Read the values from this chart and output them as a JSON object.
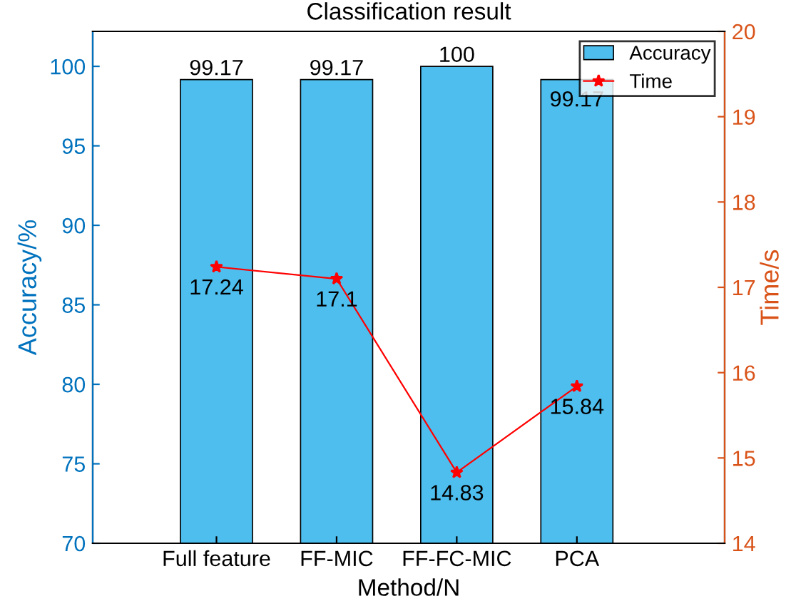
{
  "chart_data": {
    "type": "bar",
    "title": "Classification result",
    "xlabel": "Method/N",
    "ylabel": "Accuracy/%",
    "y2label": "Time/s",
    "categories": [
      "Full feature",
      "FF-MIC",
      "FF-FC-MIC",
      "PCA"
    ],
    "series": [
      {
        "name": "Accuracy",
        "color": "#4dbeee",
        "values": [
          99.17,
          99.17,
          100,
          99.17
        ]
      },
      {
        "name": "Time",
        "type": "line",
        "axis": "y2",
        "color": "#ff0000",
        "marker": "star",
        "values": [
          17.24,
          17.1,
          14.83,
          15.84
        ]
      }
    ],
    "ylim": [
      70,
      102.2
    ],
    "yticks": [
      70,
      75,
      80,
      85,
      90,
      95,
      100
    ],
    "y2lim": [
      14,
      20
    ],
    "y2ticks": [
      14,
      15,
      16,
      17,
      18,
      19,
      20
    ],
    "data_labels": true,
    "legend": "top right",
    "grid": false
  }
}
